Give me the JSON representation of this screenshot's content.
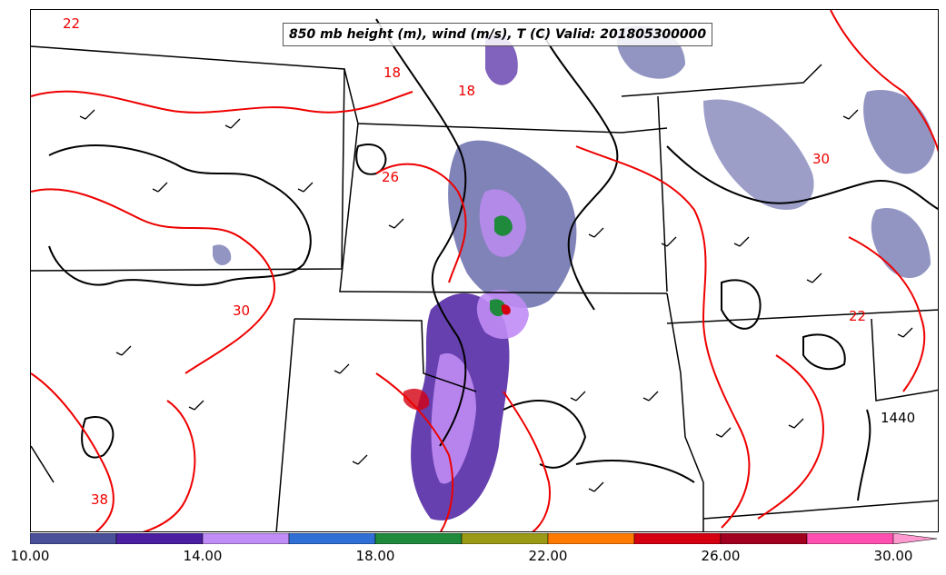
{
  "title": "850 mb height (m), wind (m/s), T (C) Valid: 201805300000",
  "colorbar": {
    "tick_labels": [
      "10.00",
      "14.00",
      "18.00",
      "22.00",
      "26.00",
      "30.00"
    ],
    "colors": [
      "#4a4f9a",
      "#4b1fa0",
      "#c08cf5",
      "#2f6fd6",
      "#1f8a3c",
      "#9a9a16",
      "#ff7a00",
      "#d40012",
      "#a0001e",
      "#ff4fb0"
    ],
    "extend_color": "#ff9ad0"
  },
  "temperature_labels": [
    "22",
    "18",
    "18",
    "26",
    "22",
    "30",
    "38",
    "30"
  ],
  "height_labels": [
    "1440"
  ],
  "colors": {
    "temperature_contour": "#ee0000",
    "height_contour": "#000000",
    "state_borders": "#000000"
  }
}
